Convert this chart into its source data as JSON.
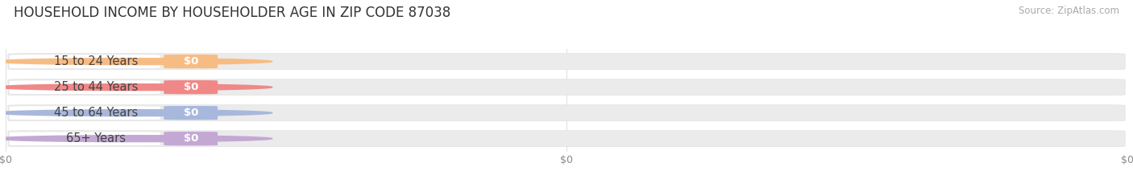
{
  "title": "HOUSEHOLD INCOME BY HOUSEHOLDER AGE IN ZIP CODE 87038",
  "source": "Source: ZipAtlas.com",
  "categories": [
    "15 to 24 Years",
    "25 to 44 Years",
    "45 to 64 Years",
    "65+ Years"
  ],
  "values": [
    0,
    0,
    0,
    0
  ],
  "bar_colors": [
    "#f7bc84",
    "#f08888",
    "#a8b8dc",
    "#c4a8d4"
  ],
  "bar_track_color": "#ebebeb",
  "bar_track_edge": "#dddddd",
  "label_bg": "#ffffff",
  "background_color": "#ffffff",
  "title_fontsize": 12,
  "label_fontsize": 10.5,
  "value_fontsize": 9.5,
  "tick_fontsize": 9,
  "source_fontsize": 8.5,
  "tick_color": "#888888",
  "title_color": "#333333",
  "source_color": "#aaaaaa",
  "label_color": "#444444"
}
